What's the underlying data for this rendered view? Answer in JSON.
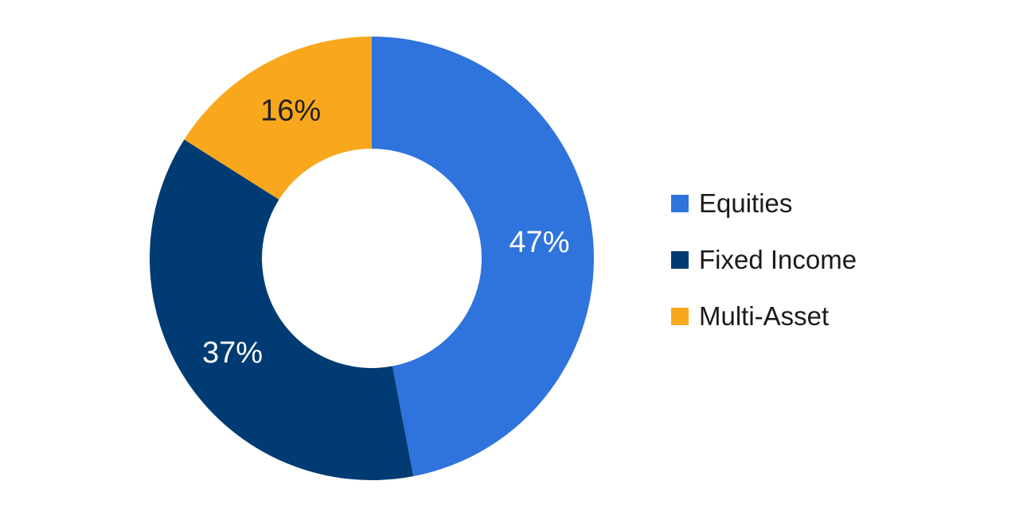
{
  "chart_data": {
    "type": "pie",
    "variant": "donut",
    "title": "",
    "legend_position": "right",
    "unit": "%",
    "slices": [
      {
        "label": "Equities",
        "value": 47,
        "display": "47%",
        "color": "#2f73dd",
        "label_color": "#ffffff"
      },
      {
        "label": "Fixed Income",
        "value": 37,
        "display": "37%",
        "color": "#003b73",
        "label_color": "#ffffff"
      },
      {
        "label": "Multi-Asset",
        "value": 16,
        "display": "16%",
        "color": "#f9a81d",
        "label_color": "#222222"
      }
    ]
  }
}
